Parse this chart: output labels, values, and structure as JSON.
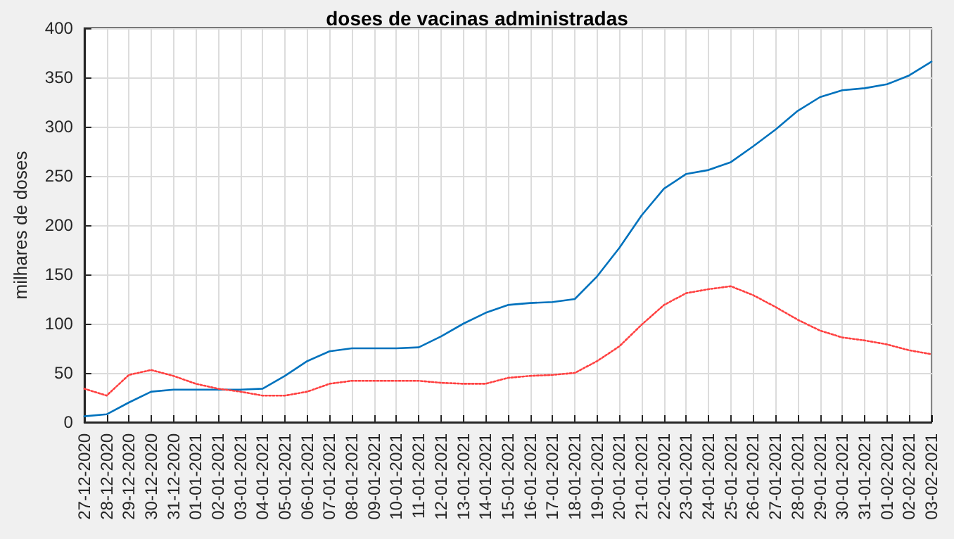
{
  "chart_data": {
    "type": "line",
    "title": "doses de vacinas administradas",
    "ylabel": "milhares de doses",
    "categories": [
      "27-12-2020",
      "28-12-2020",
      "29-12-2020",
      "30-12-2020",
      "31-12-2020",
      "01-01-2021",
      "02-01-2021",
      "03-01-2021",
      "04-01-2021",
      "05-01-2021",
      "06-01-2021",
      "07-01-2021",
      "08-01-2021",
      "09-01-2021",
      "10-01-2021",
      "11-01-2021",
      "12-01-2021",
      "13-01-2021",
      "14-01-2021",
      "15-01-2021",
      "16-01-2021",
      "17-01-2021",
      "18-01-2021",
      "19-01-2021",
      "20-01-2021",
      "21-01-2021",
      "22-01-2021",
      "23-01-2021",
      "24-01-2021",
      "25-01-2021",
      "26-01-2021",
      "27-01-2021",
      "28-01-2021",
      "29-01-2021",
      "30-01-2021",
      "31-01-2021",
      "01-02-2021",
      "02-02-2021",
      "03-02-2021"
    ],
    "series": [
      {
        "color": "#0072bd",
        "line_style": "solid",
        "values": [
          6,
          8,
          20,
          31,
          33,
          33,
          33,
          33,
          34,
          47,
          62,
          72,
          75,
          75,
          75,
          76,
          87,
          100,
          111,
          119,
          121,
          122,
          125,
          148,
          177,
          210,
          237,
          252,
          256,
          264,
          280,
          297,
          316,
          330,
          337,
          339,
          343,
          352,
          366
        ]
      },
      {
        "color": "#ff4040",
        "line_style": "dotted",
        "values": [
          34,
          27,
          48,
          53,
          47,
          39,
          34,
          31,
          27,
          27,
          31,
          39,
          42,
          42,
          42,
          42,
          40,
          39,
          39,
          45,
          47,
          48,
          50,
          62,
          77,
          99,
          119,
          131,
          135,
          138,
          129,
          117,
          104,
          93,
          86,
          83,
          79,
          73,
          69
        ]
      }
    ],
    "ylim": [
      0,
      400
    ],
    "yticks": [
      0,
      50,
      100,
      150,
      200,
      250,
      300,
      350,
      400
    ],
    "grid": true,
    "marker": "none"
  }
}
